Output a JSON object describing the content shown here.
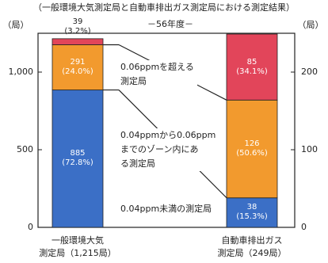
{
  "chart_data": {
    "type": "stacked-bar",
    "title": "（一般環境大気測定局と自動車排出ガス測定局における測定結果）",
    "subtitle": "－56年度－",
    "ylabel": "（局）",
    "y2label": "（局）",
    "categories": [
      "一般環境大気\n測定局（1,215局）",
      "自動車排出ガス\n測定局（249局）"
    ],
    "category_axis": [
      "y",
      "y2"
    ],
    "series": [
      {
        "name": "0.04ppm未満の測定局",
        "color": "#3b6fc6",
        "values": [
          885,
          38
        ],
        "value_labels": [
          "885\n(72.8%)",
          "38\n(15.3%)"
        ]
      },
      {
        "name": "0.04ppmから0.06ppm\nまでのゾーン内にあ\nる測定局",
        "color": "#f29a2e",
        "values": [
          291,
          126
        ],
        "value_labels": [
          "291\n(24.0%)",
          "126\n(50.6%)"
        ]
      },
      {
        "name": "0.06ppmを超える\n測定局",
        "color": "#e2455a",
        "values": [
          39,
          85
        ],
        "value_labels": [
          "39\n(3.2%)",
          "85\n(34.1%)"
        ]
      }
    ],
    "ylim": [
      0,
      1250
    ],
    "yticks": [
      0,
      500,
      {
        "value": 1000,
        "label": "1,000"
      }
    ],
    "y2lim": [
      0,
      250
    ],
    "y2ticks": [
      0,
      100,
      200
    ]
  }
}
